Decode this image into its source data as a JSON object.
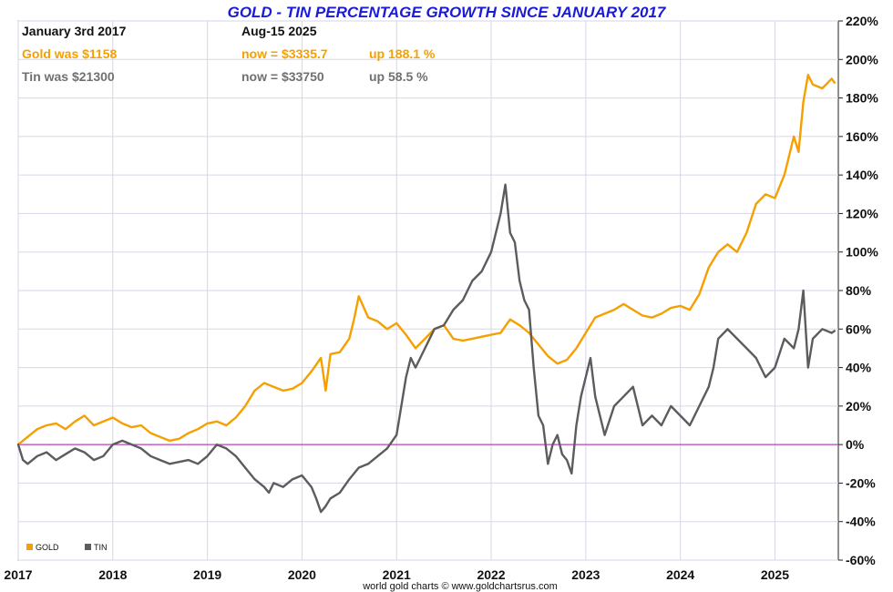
{
  "chart_data": {
    "type": "line",
    "title": "GOLD - TIN PERCENTAGE GROWTH SINCE JANUARY 2017",
    "xlabel": "",
    "ylabel": "",
    "xlim": [
      2017,
      2025.67
    ],
    "ylim": [
      -60,
      220
    ],
    "x_ticks": [
      "2017",
      "2018",
      "2019",
      "2020",
      "2021",
      "2022",
      "2023",
      "2024",
      "2025"
    ],
    "y_ticks": [
      "220%",
      "200%",
      "180%",
      "160%",
      "140%",
      "120%",
      "100%",
      "80%",
      "60%",
      "40%",
      "20%",
      "0%",
      "-20%",
      "-40%",
      "-60%"
    ],
    "y_tick_values": [
      220,
      200,
      180,
      160,
      140,
      120,
      100,
      80,
      60,
      40,
      20,
      0,
      -20,
      -40,
      -60
    ],
    "grid": true,
    "legend_position": "bottom-left",
    "series": [
      {
        "name": "GOLD",
        "color": "#f5a000",
        "x": [
          2017.0,
          2017.1,
          2017.2,
          2017.3,
          2017.4,
          2017.5,
          2017.6,
          2017.7,
          2017.8,
          2017.9,
          2018.0,
          2018.1,
          2018.2,
          2018.3,
          2018.4,
          2018.5,
          2018.6,
          2018.7,
          2018.8,
          2018.9,
          2019.0,
          2019.1,
          2019.2,
          2019.3,
          2019.4,
          2019.5,
          2019.6,
          2019.7,
          2019.8,
          2019.9,
          2020.0,
          2020.1,
          2020.2,
          2020.25,
          2020.3,
          2020.4,
          2020.5,
          2020.55,
          2020.6,
          2020.7,
          2020.8,
          2020.9,
          2021.0,
          2021.1,
          2021.2,
          2021.3,
          2021.4,
          2021.5,
          2021.6,
          2021.7,
          2021.8,
          2021.9,
          2022.0,
          2022.1,
          2022.2,
          2022.3,
          2022.4,
          2022.5,
          2022.6,
          2022.7,
          2022.8,
          2022.9,
          2023.0,
          2023.1,
          2023.2,
          2023.3,
          2023.4,
          2023.5,
          2023.6,
          2023.7,
          2023.8,
          2023.9,
          2024.0,
          2024.1,
          2024.2,
          2024.3,
          2024.4,
          2024.5,
          2024.6,
          2024.7,
          2024.8,
          2024.9,
          2025.0,
          2025.1,
          2025.2,
          2025.25,
          2025.3,
          2025.35,
          2025.4,
          2025.5,
          2025.6,
          2025.63
        ],
        "values": [
          0,
          4,
          8,
          10,
          11,
          8,
          12,
          15,
          10,
          12,
          14,
          11,
          9,
          10,
          6,
          4,
          2,
          3,
          6,
          8,
          11,
          12,
          10,
          14,
          20,
          28,
          32,
          30,
          28,
          29,
          32,
          38,
          45,
          28,
          47,
          48,
          55,
          65,
          77,
          66,
          64,
          60,
          63,
          57,
          50,
          55,
          60,
          62,
          55,
          54,
          55,
          56,
          57,
          58,
          65,
          62,
          58,
          52,
          46,
          42,
          44,
          50,
          58,
          66,
          68,
          70,
          73,
          70,
          67,
          66,
          68,
          71,
          72,
          70,
          78,
          92,
          100,
          104,
          100,
          110,
          125,
          130,
          128,
          140,
          160,
          152,
          178,
          192,
          187,
          185,
          190,
          188
        ]
      },
      {
        "name": "TIN",
        "color": "#5c5c5c",
        "x": [
          2017.0,
          2017.05,
          2017.1,
          2017.2,
          2017.3,
          2017.4,
          2017.5,
          2017.6,
          2017.7,
          2017.8,
          2017.9,
          2018.0,
          2018.1,
          2018.2,
          2018.3,
          2018.4,
          2018.5,
          2018.6,
          2018.7,
          2018.8,
          2018.9,
          2019.0,
          2019.1,
          2019.2,
          2019.3,
          2019.4,
          2019.5,
          2019.6,
          2019.65,
          2019.7,
          2019.8,
          2019.9,
          2020.0,
          2020.1,
          2020.15,
          2020.2,
          2020.25,
          2020.3,
          2020.4,
          2020.5,
          2020.6,
          2020.7,
          2020.8,
          2020.9,
          2021.0,
          2021.05,
          2021.1,
          2021.15,
          2021.2,
          2021.3,
          2021.4,
          2021.5,
          2021.6,
          2021.7,
          2021.8,
          2021.9,
          2022.0,
          2022.05,
          2022.1,
          2022.15,
          2022.2,
          2022.25,
          2022.3,
          2022.35,
          2022.4,
          2022.45,
          2022.5,
          2022.55,
          2022.6,
          2022.65,
          2022.7,
          2022.75,
          2022.8,
          2022.85,
          2022.9,
          2022.95,
          2023.0,
          2023.05,
          2023.1,
          2023.2,
          2023.3,
          2023.4,
          2023.5,
          2023.6,
          2023.7,
          2023.8,
          2023.9,
          2024.0,
          2024.1,
          2024.2,
          2024.3,
          2024.35,
          2024.4,
          2024.5,
          2024.6,
          2024.7,
          2024.8,
          2024.9,
          2025.0,
          2025.1,
          2025.2,
          2025.25,
          2025.3,
          2025.35,
          2025.4,
          2025.5,
          2025.6,
          2025.63
        ],
        "values": [
          0,
          -8,
          -10,
          -6,
          -4,
          -8,
          -5,
          -2,
          -4,
          -8,
          -6,
          0,
          2,
          0,
          -2,
          -6,
          -8,
          -10,
          -9,
          -8,
          -10,
          -6,
          0,
          -2,
          -6,
          -12,
          -18,
          -22,
          -25,
          -20,
          -22,
          -18,
          -16,
          -22,
          -28,
          -35,
          -32,
          -28,
          -25,
          -18,
          -12,
          -10,
          -6,
          -2,
          5,
          20,
          35,
          45,
          40,
          50,
          60,
          62,
          70,
          75,
          85,
          90,
          100,
          110,
          120,
          135,
          110,
          105,
          85,
          75,
          70,
          40,
          15,
          10,
          -10,
          0,
          5,
          -5,
          -8,
          -15,
          10,
          25,
          35,
          45,
          25,
          5,
          20,
          25,
          30,
          10,
          15,
          10,
          20,
          15,
          10,
          20,
          30,
          40,
          55,
          60,
          55,
          50,
          45,
          35,
          40,
          55,
          50,
          60,
          80,
          40,
          55,
          60,
          58,
          59
        ]
      }
    ],
    "annotations": {
      "start_date": "January 3rd 2017",
      "end_date": "Aug-15  2025",
      "gold_was": "Gold was $1158",
      "gold_now": "now = $3335.7",
      "gold_up": "up 188.1 %",
      "tin_was": "Tin was $21300",
      "tin_now": "now = $33750",
      "tin_up": "up 58.5 %"
    },
    "credit": "world gold charts © www.goldchartsrus.com"
  }
}
